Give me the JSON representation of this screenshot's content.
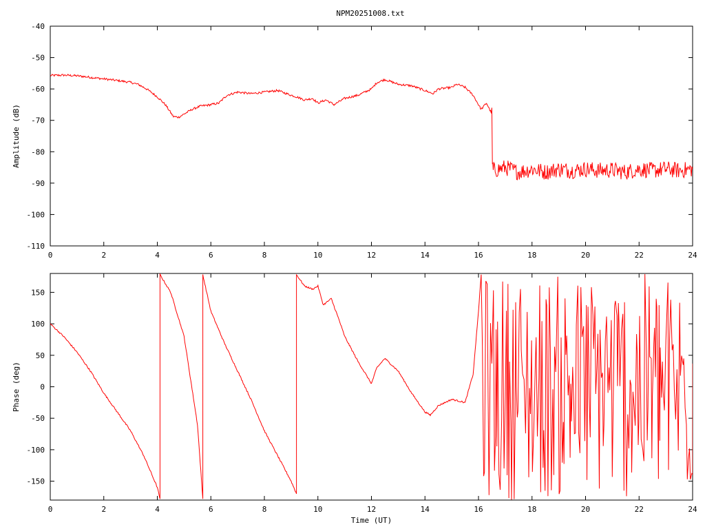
{
  "title": "NPM20251008.txt",
  "chart_data": [
    {
      "type": "line",
      "name": "amplitude-panel",
      "title": "NPM20251008.txt",
      "xlabel": "",
      "ylabel": "Amplitude (dB)",
      "xlim": [
        0,
        24
      ],
      "ylim": [
        -110,
        -40
      ],
      "xticks": [
        0,
        2,
        4,
        6,
        8,
        10,
        12,
        14,
        16,
        18,
        20,
        22,
        24
      ],
      "yticks": [
        -110,
        -100,
        -90,
        -80,
        -70,
        -60,
        -50,
        -40
      ],
      "grid": false,
      "line_color": "#ff0000",
      "series": [
        {
          "x": [
            0,
            0.5,
            1,
            1.5,
            2,
            2.5,
            3,
            3.3,
            3.6,
            4,
            4.3,
            4.6,
            4.8,
            5,
            5.3,
            5.6,
            6,
            6.3,
            6.6,
            7,
            7.5,
            8,
            8.5,
            9,
            9.2,
            9.5,
            9.8,
            10,
            10.3,
            10.6,
            11,
            11.5,
            12,
            12.2,
            12.5,
            13,
            13.5,
            14,
            14.3,
            14.5,
            15,
            15.2,
            15.5,
            15.8,
            16.1,
            16.3,
            16.5,
            16.52,
            16.55,
            17,
            17.5,
            18,
            18.5,
            19,
            19.5,
            20,
            20.5,
            21,
            21.5,
            22,
            22.5,
            23,
            23.5,
            24
          ],
          "y": [
            -55.7,
            -55.6,
            -55.8,
            -56.3,
            -56.8,
            -57.3,
            -57.9,
            -58.6,
            -60,
            -62.5,
            -65,
            -68.8,
            -69,
            -68,
            -66.5,
            -65.5,
            -65,
            -64.5,
            -62,
            -61,
            -61.5,
            -61,
            -60.5,
            -62,
            -62.5,
            -63.5,
            -63,
            -64.5,
            -63.5,
            -65,
            -63,
            -62,
            -60,
            -58,
            -57,
            -58.5,
            -59,
            -60.5,
            -61.5,
            -60,
            -59.5,
            -58.5,
            -59.5,
            -62,
            -66.5,
            -64.5,
            -68,
            -84,
            -86,
            -85,
            -86.5,
            -85.5,
            -86.5,
            -85.5,
            -86,
            -85.5,
            -86,
            -85.8,
            -86.5,
            -85.5,
            -86,
            -85.5,
            -86,
            -85.5
          ]
        }
      ]
    },
    {
      "type": "line",
      "name": "phase-panel",
      "title": "",
      "xlabel": "Time (UT)",
      "ylabel": "Phase (deg)",
      "xlim": [
        0,
        24
      ],
      "ylim": [
        -180,
        180
      ],
      "xticks": [
        0,
        2,
        4,
        6,
        8,
        10,
        12,
        14,
        16,
        18,
        20,
        22,
        24
      ],
      "yticks": [
        -150,
        -100,
        -50,
        0,
        50,
        100,
        150
      ],
      "grid": false,
      "line_color": "#ff0000",
      "series": [
        {
          "x": [
            0,
            0.5,
            1,
            1.5,
            2,
            2.5,
            3,
            3.5,
            4,
            4.1,
            4.1,
            4.5,
            5,
            5.5,
            5.7,
            5.7,
            6,
            6.5,
            7,
            7.5,
            8,
            8.5,
            9,
            9.2,
            9.2,
            9.5,
            9.8,
            10,
            10.2,
            10.5,
            10.8,
            11,
            11.5,
            12,
            12.2,
            12.5,
            13,
            13.5,
            14,
            14.2,
            14.5,
            15,
            15.5,
            15.8,
            16,
            16.1
          ],
          "y": [
            100,
            80,
            55,
            25,
            -10,
            -40,
            -70,
            -110,
            -160,
            -178,
            178,
            150,
            80,
            -60,
            -178,
            178,
            120,
            70,
            25,
            -20,
            -70,
            -110,
            -150,
            -170,
            178,
            160,
            155,
            160,
            130,
            140,
            105,
            80,
            40,
            5,
            30,
            45,
            25,
            -10,
            -40,
            -45,
            -30,
            -20,
            -25,
            20,
            120,
            178
          ]
        }
      ]
    }
  ]
}
